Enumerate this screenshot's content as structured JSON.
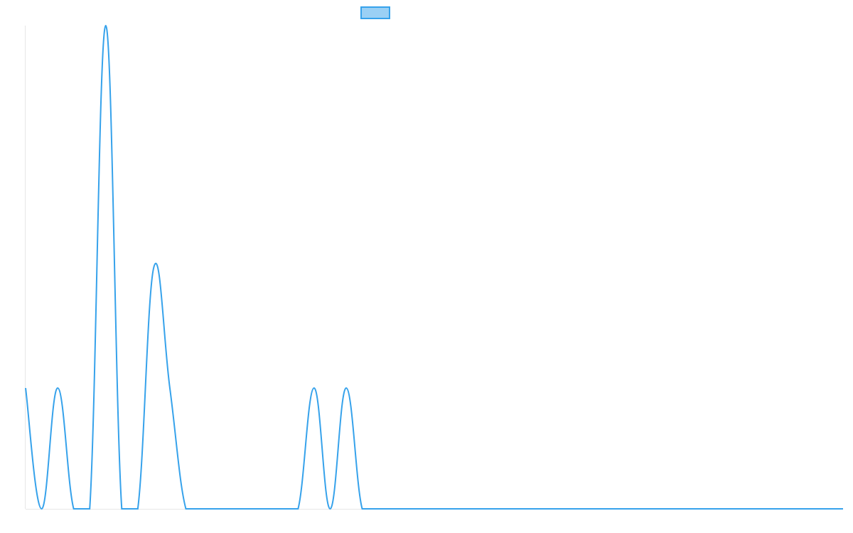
{
  "chart_data": {
    "type": "line",
    "categories": [
      null,
      null,
      null,
      null,
      null,
      null,
      null,
      null,
      null,
      null,
      null,
      null,
      null,
      null,
      null,
      null,
      null,
      null,
      null,
      null,
      null,
      null,
      null,
      null,
      null,
      null,
      null,
      null,
      null,
      null,
      null,
      null,
      null,
      null,
      null,
      null,
      null,
      null,
      null,
      null,
      null,
      null,
      null,
      null,
      null,
      null,
      null,
      null,
      null,
      null,
      null,
      null
    ],
    "series": [
      {
        "color": "#36a2eb",
        "values": [
          1,
          0,
          1,
          0,
          0,
          4,
          0,
          0,
          2,
          1,
          0,
          0,
          0,
          0,
          0,
          0,
          0,
          0,
          1,
          0,
          1,
          0,
          0,
          0,
          0,
          0,
          0,
          0,
          0,
          0,
          0,
          0,
          0,
          0,
          0,
          0,
          0,
          0,
          0,
          0,
          0,
          0,
          0,
          0,
          0,
          0,
          0,
          0,
          0,
          0,
          0,
          0
        ]
      }
    ],
    "ylim": [
      0,
      4
    ],
    "legend": "top"
  }
}
